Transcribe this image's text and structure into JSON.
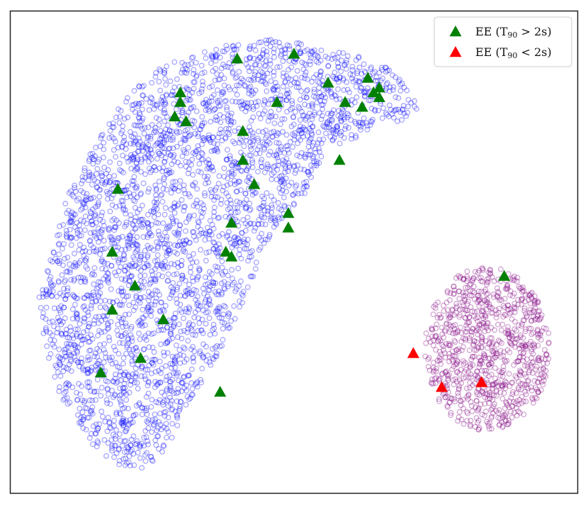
{
  "chart_data": {
    "type": "scatter",
    "xlim": [
      0,
      100
    ],
    "ylim": [
      0,
      100
    ],
    "grid": false,
    "axis_ticks": false,
    "legend_position": "top-right",
    "legend": [
      {
        "name": "EE",
        "paren_open": "(",
        "sub": "90",
        "relation": "> 2s)",
        "color": "#008000",
        "marker": "triangle"
      },
      {
        "name": "EE",
        "paren_open": "(",
        "sub": "90",
        "relation": "< 2s)",
        "color": "#ff0000",
        "marker": "triangle"
      }
    ],
    "background_clusters": [
      {
        "label": "main-cluster",
        "color": "#0000ff",
        "marker": "open-circle",
        "alpha": 0.35,
        "outline": [
          [
            5,
            42
          ],
          [
            8,
            52
          ],
          [
            10,
            62
          ],
          [
            14,
            70
          ],
          [
            18,
            78
          ],
          [
            22,
            84
          ],
          [
            26,
            88
          ],
          [
            32,
            91
          ],
          [
            38,
            93
          ],
          [
            46,
            94
          ],
          [
            54,
            93
          ],
          [
            61,
            91
          ],
          [
            66,
            89
          ],
          [
            69,
            86
          ],
          [
            72,
            80
          ],
          [
            69,
            77
          ],
          [
            64,
            76
          ],
          [
            60,
            73
          ],
          [
            55,
            70
          ],
          [
            52,
            62
          ],
          [
            47,
            55
          ],
          [
            44,
            48
          ],
          [
            42,
            42
          ],
          [
            38,
            32
          ],
          [
            35,
            25
          ],
          [
            31,
            18
          ],
          [
            28,
            10
          ],
          [
            24,
            5
          ],
          [
            18,
            6
          ],
          [
            13,
            12
          ],
          [
            9,
            20
          ],
          [
            6,
            30
          ]
        ],
        "approx_count": 3200
      },
      {
        "label": "small-cluster",
        "color": "#800080",
        "marker": "open-circle",
        "alpha": 0.35,
        "center": [
          84,
          30
        ],
        "radius": [
          11,
          17
        ],
        "approx_count": 900
      }
    ],
    "series": [
      {
        "name": "EE (T90 > 2s)",
        "color": "#008000",
        "points": [
          [
            40,
            90
          ],
          [
            50,
            91
          ],
          [
            56,
            85
          ],
          [
            63,
            86
          ],
          [
            64,
            83
          ],
          [
            65,
            84
          ],
          [
            65,
            82
          ],
          [
            62,
            80
          ],
          [
            59,
            81
          ],
          [
            47,
            81
          ],
          [
            30,
            83
          ],
          [
            30,
            81
          ],
          [
            29,
            78
          ],
          [
            31,
            77
          ],
          [
            41,
            75
          ],
          [
            41,
            69
          ],
          [
            58,
            69
          ],
          [
            43,
            64
          ],
          [
            19,
            63
          ],
          [
            39,
            56
          ],
          [
            49,
            58
          ],
          [
            49,
            55
          ],
          [
            38,
            50
          ],
          [
            39,
            49
          ],
          [
            18,
            50
          ],
          [
            22,
            43
          ],
          [
            18,
            38
          ],
          [
            27,
            36
          ],
          [
            23,
            28
          ],
          [
            16,
            25
          ],
          [
            37,
            21
          ],
          [
            87,
            45
          ]
        ]
      },
      {
        "name": "EE (T90 < 2s)",
        "color": "#ff0000",
        "points": [
          [
            71,
            29
          ],
          [
            76,
            22
          ],
          [
            83,
            23
          ]
        ]
      }
    ]
  }
}
